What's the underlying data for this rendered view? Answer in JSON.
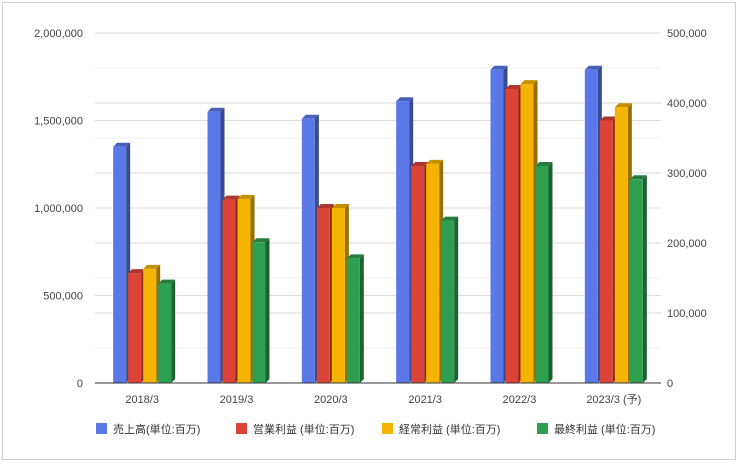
{
  "chart_data": {
    "type": "bar",
    "style": "3d-clustered",
    "categories": [
      "2018/3",
      "2019/3",
      "2020/3",
      "2021/3",
      "2022/3",
      "2023/3 (予)"
    ],
    "left_axis": {
      "ylim": [
        0,
        2000000
      ],
      "ticks": [
        "0",
        "500,000",
        "1,000,000",
        "1,500,000",
        "2,000,000"
      ],
      "tick_values": [
        0,
        500000,
        1000000,
        1500000,
        2000000
      ]
    },
    "right_axis": {
      "ylim": [
        0,
        500000
      ],
      "ticks": [
        "0",
        "100,000",
        "200,000",
        "300,000",
        "400,000",
        "500,000"
      ],
      "tick_values": [
        0,
        100000,
        200000,
        300000,
        400000,
        500000
      ]
    },
    "grid": true,
    "legend_position": "bottom",
    "series": [
      {
        "name": "売上高(単位:百万)",
        "axis": "left",
        "color": "#5B78E8",
        "values": [
          1350000,
          1550000,
          1510000,
          1610000,
          1790000,
          1790000
        ]
      },
      {
        "name": "営業利益 (単位:百万)",
        "axis": "right",
        "color": "#DB4437",
        "values": [
          157000,
          262000,
          250000,
          310000,
          420000,
          375000
        ]
      },
      {
        "name": "経常利益 (単位:百万)",
        "axis": "right",
        "color": "#F4B400",
        "values": [
          163000,
          263000,
          250000,
          313000,
          427000,
          394000
        ]
      },
      {
        "name": "最終利益 (単位:百万)",
        "axis": "right",
        "color": "#2E9E50",
        "values": [
          142000,
          201000,
          178000,
          232000,
          310000,
          291000
        ]
      }
    ]
  }
}
